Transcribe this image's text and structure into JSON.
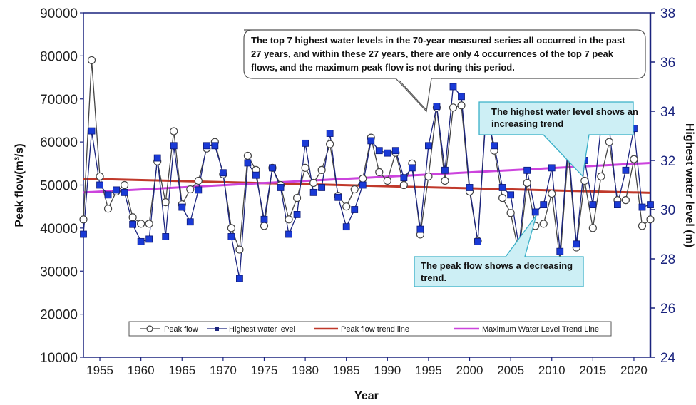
{
  "chart_data": {
    "type": "line",
    "xlabel": "Year",
    "ylabel_left": "Peak flow(m³/s)",
    "ylabel_right": "Highest water level (m)",
    "xlim": [
      1953,
      2022
    ],
    "ylim_left": [
      10000,
      90000
    ],
    "ylim_right": [
      24,
      38
    ],
    "x_ticks": [
      "1955",
      "1960",
      "1965",
      "1970",
      "1975",
      "1980",
      "1985",
      "1990",
      "1995",
      "2000",
      "2005",
      "2010",
      "2015",
      "2020"
    ],
    "y_ticks_left": [
      "10000",
      "20000",
      "30000",
      "40000",
      "50000",
      "60000",
      "70000",
      "80000",
      "90000"
    ],
    "y_ticks_right": [
      "24",
      "26",
      "28",
      "30",
      "32",
      "34",
      "36",
      "38"
    ],
    "grid": false,
    "years": [
      1953,
      1954,
      1955,
      1956,
      1957,
      1958,
      1959,
      1960,
      1961,
      1962,
      1963,
      1964,
      1965,
      1966,
      1967,
      1968,
      1969,
      1970,
      1971,
      1972,
      1973,
      1974,
      1975,
      1976,
      1977,
      1978,
      1979,
      1980,
      1981,
      1982,
      1983,
      1984,
      1985,
      1986,
      1987,
      1988,
      1989,
      1990,
      1991,
      1992,
      1993,
      1994,
      1995,
      1996,
      1997,
      1998,
      1999,
      2000,
      2001,
      2002,
      2003,
      2004,
      2005,
      2006,
      2007,
      2008,
      2009,
      2010,
      2011,
      2012,
      2013,
      2014,
      2015,
      2016,
      2017,
      2018,
      2019,
      2020,
      2021,
      2022
    ],
    "series": [
      {
        "name": "Peak flow",
        "axis": "left",
        "color": "#444444",
        "marker": "circle",
        "values": [
          42000,
          79000,
          52000,
          44500,
          48500,
          50000,
          42500,
          41000,
          41000,
          55500,
          46000,
          62500,
          45500,
          49000,
          51000,
          58500,
          60000,
          52500,
          40000,
          35000,
          56800,
          53500,
          40500,
          54000,
          50000,
          42000,
          47000,
          54000,
          50500,
          53500,
          59500,
          47500,
          45000,
          49000,
          51500,
          61000,
          53000,
          51000,
          57500,
          50000,
          55000,
          38500,
          52000,
          68000,
          51000,
          68000,
          68500,
          48500,
          37000,
          67500,
          58000,
          47000,
          43500,
          34000,
          50500,
          40500,
          41000,
          48000,
          32500,
          57500,
          35500,
          51000,
          40000,
          52000,
          60000,
          46500,
          46500,
          56000,
          40500,
          42000
        ]
      },
      {
        "name": "Highest water level",
        "axis": "right",
        "color": "#1a237e",
        "marker": "square",
        "values": [
          29.0,
          33.2,
          31.0,
          30.6,
          30.8,
          30.7,
          29.4,
          28.7,
          28.8,
          32.1,
          28.9,
          32.6,
          30.1,
          29.5,
          30.8,
          32.6,
          32.6,
          31.5,
          28.9,
          27.2,
          31.9,
          31.4,
          29.6,
          31.7,
          30.9,
          29.0,
          29.8,
          32.7,
          30.7,
          30.9,
          33.1,
          30.5,
          29.3,
          30.0,
          31.0,
          32.8,
          32.4,
          32.3,
          32.4,
          31.3,
          31.7,
          29.2,
          32.6,
          34.2,
          31.6,
          35.0,
          34.6,
          30.9,
          28.7,
          33.9,
          32.6,
          30.9,
          30.6,
          28.5,
          31.6,
          29.9,
          30.2,
          31.7,
          28.3,
          32.7,
          28.6,
          32.0,
          30.2,
          33.4,
          33.3,
          30.2,
          31.6,
          33.3,
          30.1,
          30.2
        ]
      },
      {
        "name": "Peak flow trend line",
        "axis": "left",
        "color": "#c0392b",
        "type": "trend",
        "x": [
          1953,
          2022
        ],
        "values": [
          51500,
          48200
        ]
      },
      {
        "name": "Maximum Water Level Trend Line",
        "axis": "right",
        "color": "#cc44dd",
        "type": "trend",
        "x": [
          1953,
          2022
        ],
        "values": [
          30.7,
          31.9
        ]
      }
    ],
    "legend": {
      "placement": "bottom",
      "items": [
        "Peak flow",
        "Highest water level",
        "Peak flow trend line",
        "Maximum Water Level Trend Line"
      ]
    },
    "annotations": {
      "top": {
        "lines": [
          "The top 7 highest water levels in the 70-year measured series all occurred in the past",
          "27 years, and within these 27 years, there are only 4 occurrences of the top 7 peak",
          "flows, and the maximum peak flow is not during this period."
        ]
      },
      "water": {
        "lines": [
          "The highest water level shows an",
          "increasing trend"
        ]
      },
      "flow": {
        "lines": [
          "The peak flow shows a decreasing",
          "trend."
        ]
      }
    }
  }
}
